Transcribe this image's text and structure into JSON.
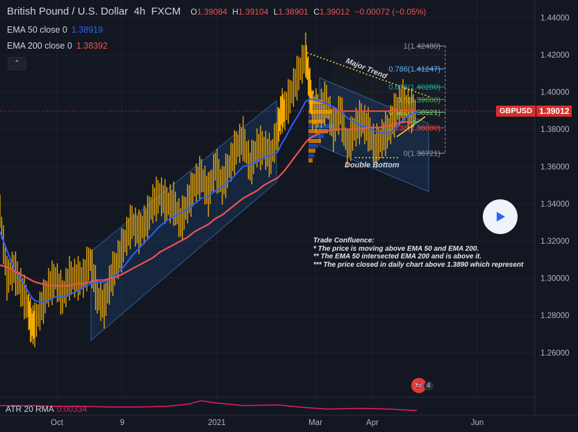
{
  "header": {
    "symbol": "British Pound / U.S. Dollar",
    "timeframe": "4h",
    "exchange": "FXCM",
    "ohlc": [
      {
        "k": "O",
        "v": "1.39084"
      },
      {
        "k": "H",
        "v": "1.39104"
      },
      {
        "k": "L",
        "v": "1.38901"
      },
      {
        "k": "C",
        "v": "1.39012"
      }
    ],
    "change": "−0.00072 (−0.05%)"
  },
  "indicators": {
    "ema50_label": "EMA 50 close 0",
    "ema50_value": "1.38919",
    "ema200_label": "EMA 200 close 0",
    "ema200_value": "1.38392",
    "atr_label": "ATR 20 RMA",
    "atr_value": "0.00334"
  },
  "collapse_symbol": "⌃",
  "price_tag": {
    "symbol": "GBPUSD",
    "value": "1.39012"
  },
  "fib_levels": [
    {
      "label": "1(1.42480)",
      "price": 1.4248,
      "color": "#9598a1"
    },
    {
      "label": "0.786(1.41247)",
      "price": 1.41247,
      "color": "#64b5f6"
    },
    {
      "label": "0.618(1.40280)",
      "price": 1.4028,
      "color": "#26a69a"
    },
    {
      "label": "0.5(1.39600)",
      "price": 1.396,
      "color": "#4caf50"
    },
    {
      "label": "0.382(1.38921)",
      "price": 1.38921,
      "color": "#81c784"
    },
    {
      "label": "0.236(1.38080)",
      "price": 1.3808,
      "color": "#f44336"
    },
    {
      "label": "0(1.36721)",
      "price": 1.36721,
      "color": "#9598a1"
    }
  ],
  "annotations": {
    "major_trend": "Major Trend",
    "double_bottom": "Double Bottom"
  },
  "confluence": {
    "title": "Trade Confluence:",
    "lines": [
      "* The price is moving above EMA 50 and EMA 200.",
      "** The EMA 50 intersected EMA 200 and is above it.",
      "*** The price closed in daily chart above 1.3890 which represent"
    ]
  },
  "badge": {
    "count": "4"
  },
  "chart_data": {
    "type": "line",
    "title": "British Pound / U.S. Dollar 4h FXCM",
    "ylim": [
      1.245,
      1.445
    ],
    "y_ticks": [
      "1.44000",
      "1.42000",
      "1.40000",
      "1.38000",
      "1.36000",
      "1.34000",
      "1.32000",
      "1.30000",
      "1.28000",
      "1.26000"
    ],
    "x_ticks": [
      "Oct",
      "9",
      "2021",
      "Mar",
      "Apr",
      "Jun"
    ],
    "x": [
      0,
      10,
      20,
      30,
      40,
      45,
      50,
      60,
      70,
      80,
      90,
      100,
      110,
      120,
      130,
      140,
      150,
      160,
      170,
      180,
      190,
      200,
      210,
      220,
      230,
      240,
      250,
      260,
      270,
      280,
      290,
      300,
      310,
      320,
      330,
      340,
      350,
      360,
      370,
      380,
      390,
      400,
      405,
      410,
      420,
      430,
      440,
      445,
      450,
      460,
      470,
      480,
      490,
      500,
      510,
      520,
      530,
      540,
      550,
      560,
      570,
      580,
      590,
      600
    ],
    "series": [
      {
        "name": "GBPUSD",
        "color": "#ffb300",
        "values": [
          1.336,
          1.3,
          1.305,
          1.295,
          1.285,
          1.275,
          1.275,
          1.285,
          1.295,
          1.3,
          1.29,
          1.3,
          1.3,
          1.3,
          1.31,
          1.29,
          1.285,
          1.3,
          1.31,
          1.32,
          1.33,
          1.325,
          1.33,
          1.34,
          1.345,
          1.34,
          1.34,
          1.33,
          1.34,
          1.35,
          1.355,
          1.345,
          1.36,
          1.35,
          1.36,
          1.37,
          1.375,
          1.36,
          1.37,
          1.37,
          1.365,
          1.38,
          1.39,
          1.39,
          1.4,
          1.41,
          1.42,
          1.405,
          1.39,
          1.39,
          1.395,
          1.38,
          1.39,
          1.37,
          1.38,
          1.385,
          1.38,
          1.37,
          1.375,
          1.38,
          1.39,
          1.395,
          1.39,
          1.39
        ]
      },
      {
        "name": "EMA 50",
        "color": "#2962ff",
        "values": [
          1.325,
          1.315,
          1.305,
          1.3,
          1.293,
          1.29,
          1.288,
          1.287,
          1.288,
          1.29,
          1.29,
          1.291,
          1.293,
          1.295,
          1.297,
          1.298,
          1.298,
          1.3,
          1.303,
          1.307,
          1.312,
          1.316,
          1.32,
          1.324,
          1.328,
          1.331,
          1.333,
          1.335,
          1.337,
          1.34,
          1.343,
          1.344,
          1.347,
          1.349,
          1.352,
          1.356,
          1.36,
          1.361,
          1.363,
          1.365,
          1.366,
          1.368,
          1.372,
          1.375,
          1.382,
          1.388,
          1.395,
          1.396,
          1.396,
          1.395,
          1.394,
          1.392,
          1.39,
          1.386,
          1.384,
          1.382,
          1.381,
          1.379,
          1.378,
          1.378,
          1.381,
          1.385,
          1.388,
          1.389
        ]
      },
      {
        "name": "EMA 200",
        "color": "#ef5350",
        "values": [
          1.307,
          1.306,
          1.304,
          1.302,
          1.3,
          1.299,
          1.298,
          1.297,
          1.296,
          1.296,
          1.296,
          1.296,
          1.297,
          1.297,
          1.298,
          1.299,
          1.299,
          1.3,
          1.301,
          1.303,
          1.305,
          1.307,
          1.309,
          1.311,
          1.314,
          1.316,
          1.318,
          1.32,
          1.322,
          1.325,
          1.327,
          1.329,
          1.332,
          1.334,
          1.337,
          1.34,
          1.343,
          1.345,
          1.347,
          1.35,
          1.352,
          1.354,
          1.356,
          1.358,
          1.363,
          1.368,
          1.373,
          1.375,
          1.376,
          1.378,
          1.379,
          1.38,
          1.38,
          1.38,
          1.38,
          1.38,
          1.381,
          1.381,
          1.381,
          1.382,
          1.383,
          1.384,
          1.384,
          1.384
        ]
      }
    ]
  }
}
